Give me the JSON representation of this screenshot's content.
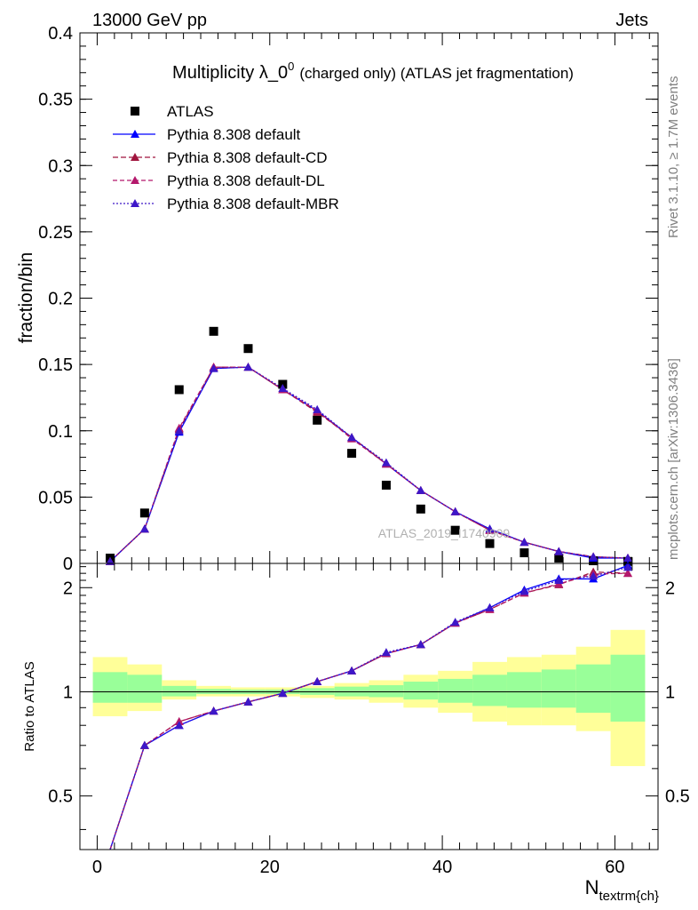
{
  "header": {
    "energy": "13000 GeV pp",
    "category": "Jets"
  },
  "title": {
    "main": "Multiplicity λ_0",
    "superscript": "0",
    "rest": "(charged only) (ATLAS jet fragmentation)"
  },
  "side_labels": {
    "rivet": "Rivet 3.1.10, ≥ 1.7M events",
    "source": "mcplots.cern.ch [arXiv:1306.3436]"
  },
  "watermark": "ATLAS_2019_I1740909",
  "chart_data": [
    {
      "type": "scatter",
      "panel": "main",
      "ylabel": "fraction/bin",
      "ylim": [
        0,
        0.4
      ],
      "yticks": [
        "0",
        "0.05",
        "0.1",
        "0.15",
        "0.2",
        "0.25",
        "0.3",
        "0.35",
        "0.4"
      ],
      "ytick_values": [
        0,
        0.05,
        0.1,
        0.15,
        0.2,
        0.25,
        0.3,
        0.35,
        0.4
      ],
      "xlim": [
        -2,
        65
      ],
      "x": [
        1.5,
        5.5,
        9.5,
        13.5,
        17.5,
        21.5,
        25.5,
        29.5,
        33.5,
        37.5,
        41.5,
        45.5,
        49.5,
        53.5,
        57.5,
        61.5
      ],
      "series": [
        {
          "name": "ATLAS",
          "color": "#000000",
          "marker": "square",
          "values": [
            0.004,
            0.038,
            0.131,
            0.175,
            0.162,
            0.135,
            0.108,
            0.083,
            0.059,
            0.041,
            0.025,
            0.015,
            0.008,
            0.004,
            0.002,
            0.0015
          ]
        },
        {
          "name": "Pythia 8.308 default",
          "color": "#0000ff",
          "dash": "",
          "marker": "triangle",
          "values": [
            0.0015,
            0.026,
            0.099,
            0.147,
            0.148,
            0.131,
            0.115,
            0.095,
            0.075,
            0.055,
            0.039,
            0.026,
            0.016,
            0.009,
            0.004,
            0.004
          ]
        },
        {
          "name": "Pythia 8.308 default-CD",
          "color": "#a0153e",
          "dash": "6,3",
          "marker": "triangle",
          "values": [
            0.0015,
            0.026,
            0.101,
            0.148,
            0.148,
            0.131,
            0.114,
            0.095,
            0.075,
            0.055,
            0.039,
            0.025,
            0.016,
            0.009,
            0.005,
            0.004
          ]
        },
        {
          "name": "Pythia 8.308 default-DL",
          "color": "#b4186c",
          "dash": "5,3",
          "marker": "triangle",
          "values": [
            0.0015,
            0.026,
            0.102,
            0.148,
            0.148,
            0.131,
            0.115,
            0.094,
            0.075,
            0.055,
            0.039,
            0.025,
            0.016,
            0.009,
            0.005,
            0.004
          ]
        },
        {
          "name": "Pythia 8.308 default-MBR",
          "color": "#3d17c8",
          "dash": "2,2",
          "marker": "triangle",
          "values": [
            0.0015,
            0.026,
            0.1,
            0.147,
            0.148,
            0.132,
            0.116,
            0.095,
            0.076,
            0.055,
            0.039,
            0.026,
            0.016,
            0.009,
            0.005,
            0.004
          ]
        }
      ]
    },
    {
      "type": "line",
      "panel": "ratio",
      "ylabel": "Ratio to ATLAS",
      "xlabel": "N",
      "xlabel_sub": "textrm{ch}",
      "ylim": [
        0.35,
        2.35
      ],
      "yticks": [
        "0.5",
        "1",
        "2"
      ],
      "ytick_values": [
        0.5,
        1,
        2
      ],
      "xlim": [
        -2,
        65
      ],
      "xticks": [
        "0",
        "20",
        "40",
        "60"
      ],
      "xtick_values": [
        0,
        20,
        40,
        60
      ],
      "bins": [
        [
          -0.5,
          3.5
        ],
        [
          3.5,
          7.5
        ],
        [
          7.5,
          11.5
        ],
        [
          11.5,
          15.5
        ],
        [
          15.5,
          19.5
        ],
        [
          19.5,
          23.5
        ],
        [
          23.5,
          27.5
        ],
        [
          27.5,
          31.5
        ],
        [
          31.5,
          35.5
        ],
        [
          35.5,
          39.5
        ],
        [
          39.5,
          43.5
        ],
        [
          43.5,
          47.5
        ],
        [
          47.5,
          51.5
        ],
        [
          51.5,
          55.5
        ],
        [
          55.5,
          59.5
        ],
        [
          59.5,
          63.5
        ]
      ],
      "band_outer": [
        [
          0.85,
          1.26
        ],
        [
          0.88,
          1.2
        ],
        [
          0.95,
          1.08
        ],
        [
          0.97,
          1.04
        ],
        [
          0.97,
          1.03
        ],
        [
          0.97,
          1.03
        ],
        [
          0.96,
          1.04
        ],
        [
          0.95,
          1.06
        ],
        [
          0.93,
          1.08
        ],
        [
          0.9,
          1.12
        ],
        [
          0.87,
          1.15
        ],
        [
          0.82,
          1.22
        ],
        [
          0.8,
          1.26
        ],
        [
          0.8,
          1.28
        ],
        [
          0.77,
          1.35
        ],
        [
          0.61,
          1.51
        ]
      ],
      "band_inner": [
        [
          0.93,
          1.14
        ],
        [
          0.93,
          1.12
        ],
        [
          0.97,
          1.04
        ],
        [
          0.985,
          1.02
        ],
        [
          0.985,
          1.015
        ],
        [
          0.985,
          1.015
        ],
        [
          0.98,
          1.025
        ],
        [
          0.97,
          1.035
        ],
        [
          0.965,
          1.045
        ],
        [
          0.95,
          1.07
        ],
        [
          0.93,
          1.09
        ],
        [
          0.91,
          1.12
        ],
        [
          0.9,
          1.14
        ],
        [
          0.9,
          1.16
        ],
        [
          0.87,
          1.2
        ],
        [
          0.82,
          1.28
        ]
      ],
      "x": [
        1.5,
        5.5,
        9.5,
        13.5,
        17.5,
        21.5,
        25.5,
        29.5,
        33.5,
        37.5,
        41.5,
        45.5,
        49.5,
        53.5,
        57.5,
        61.5
      ],
      "series": [
        {
          "name": "Pythia 8.308 default",
          "color": "#0000ff",
          "dash": "",
          "values": [
            0.35,
            0.7,
            0.8,
            0.88,
            0.935,
            0.99,
            1.07,
            1.15,
            1.29,
            1.37,
            1.58,
            1.75,
            1.97,
            2.12,
            2.12,
            2.32
          ]
        },
        {
          "name": "Pythia 8.308 default-CD",
          "color": "#a0153e",
          "dash": "6,3",
          "values": [
            0.35,
            0.7,
            0.82,
            0.88,
            0.935,
            0.99,
            1.07,
            1.15,
            1.29,
            1.37,
            1.58,
            1.73,
            1.93,
            2.04,
            2.22,
            2.2
          ]
        },
        {
          "name": "Pythia 8.308 default-DL",
          "color": "#b4186c",
          "dash": "5,3",
          "values": [
            0.35,
            0.7,
            0.82,
            0.88,
            0.935,
            0.99,
            1.07,
            1.15,
            1.29,
            1.37,
            1.58,
            1.73,
            1.93,
            2.05,
            2.19,
            2.2
          ]
        },
        {
          "name": "Pythia 8.308 default-MBR",
          "color": "#3d17c8",
          "dash": "2,2",
          "values": [
            0.35,
            0.7,
            0.8,
            0.88,
            0.935,
            0.99,
            1.07,
            1.15,
            1.3,
            1.37,
            1.59,
            1.75,
            1.95,
            2.1,
            2.16,
            2.29
          ]
        }
      ]
    }
  ]
}
